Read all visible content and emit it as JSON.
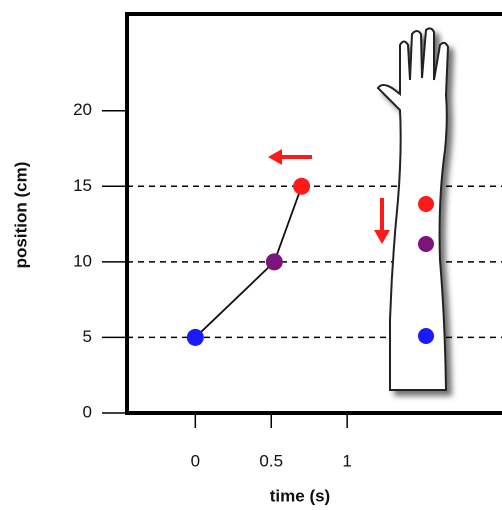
{
  "chart_data": {
    "type": "line",
    "x_label": "time (s)",
    "y_label": "position (cm)",
    "x": [
      0,
      0.52,
      0.7
    ],
    "values": [
      5,
      10,
      15
    ],
    "point_colors": [
      "#1a1aff",
      "#7b147b",
      "#ff1a1a"
    ],
    "line_color": "#111111",
    "xlim": [
      -0.45,
      2.0
    ],
    "ylim": [
      0,
      26.4
    ],
    "xticks": [
      0,
      0.5,
      1
    ],
    "yticks": [
      0,
      5,
      10,
      15,
      20
    ],
    "reference_lines": [
      5,
      10,
      15
    ]
  }
}
